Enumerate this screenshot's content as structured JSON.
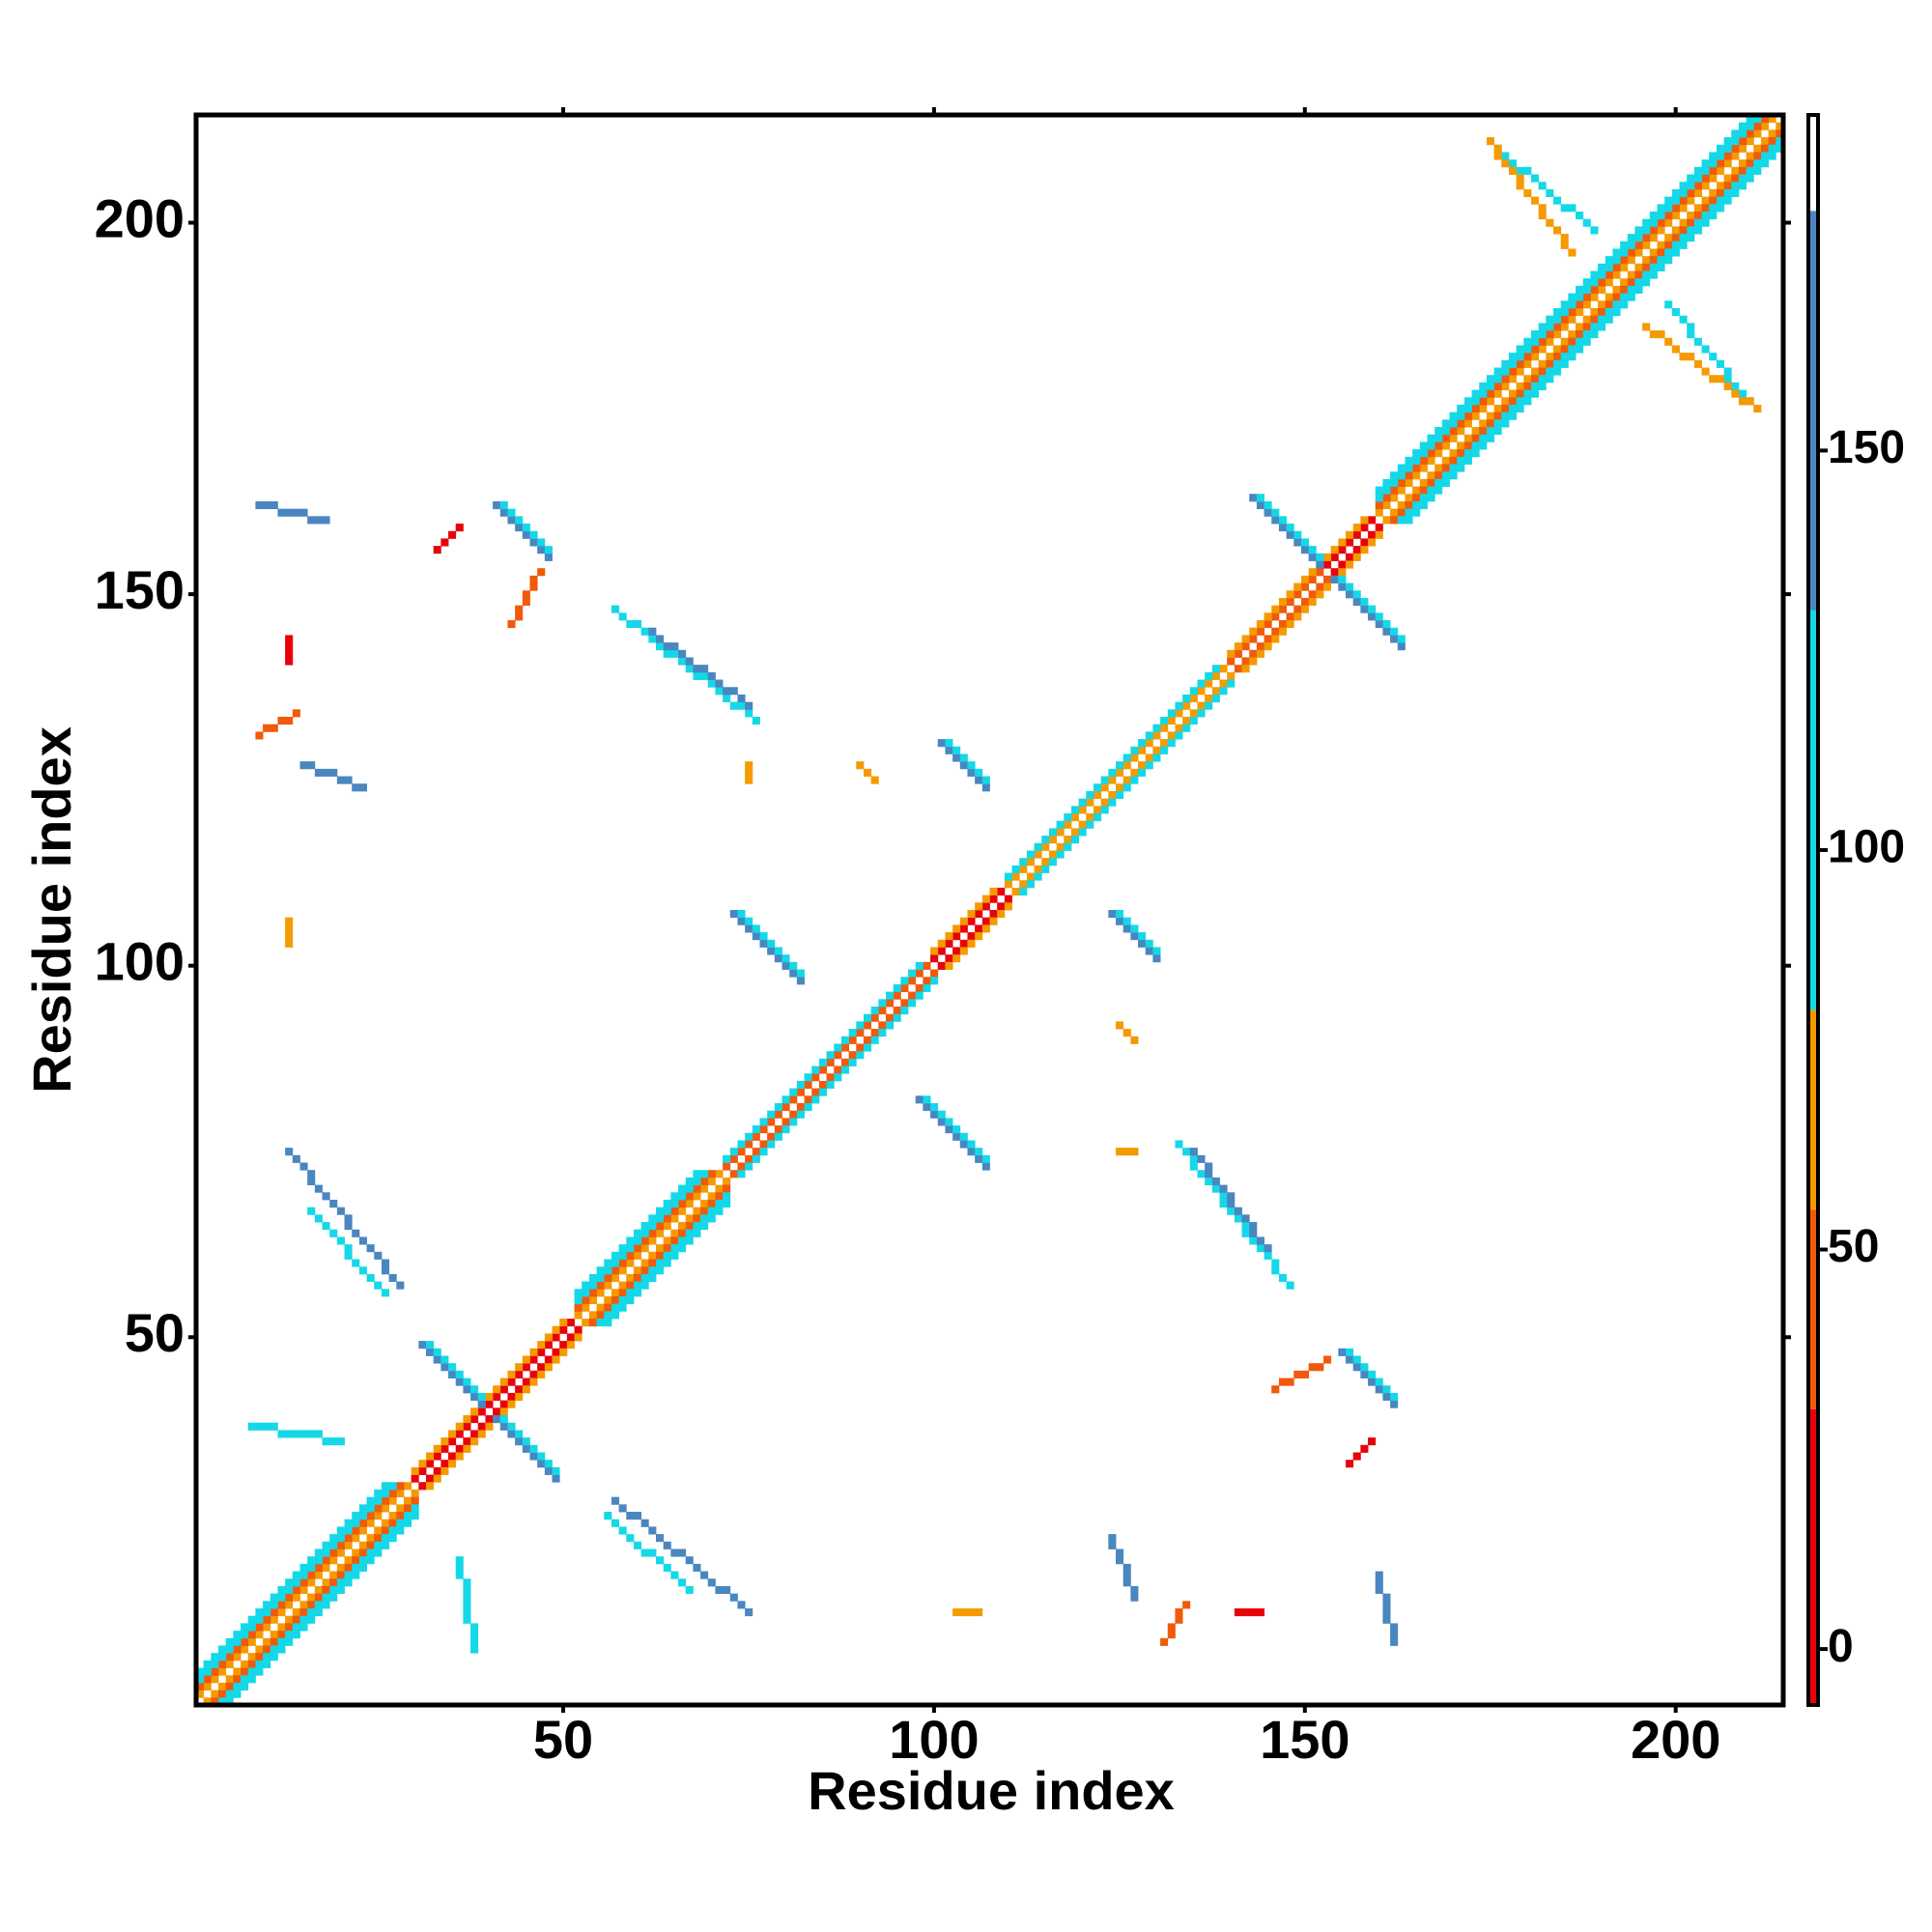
{
  "chart_data": {
    "type": "heatmap",
    "xlabel": "Residue index",
    "ylabel": "Residue index",
    "xlim": [
      0.5,
      214.5
    ],
    "ylim": [
      0.5,
      214.5
    ],
    "xticks": [
      50,
      100,
      150,
      200
    ],
    "yticks": [
      50,
      100,
      150,
      200
    ],
    "symmetric": true,
    "clim": [
      -7,
      192
    ],
    "cticks": [
      0,
      50,
      100,
      150
    ],
    "colorscale": {
      "bounds": [
        30,
        55,
        80,
        130,
        180
      ],
      "colors": [
        "#e8000b",
        "#f05a0a",
        "#f59a00",
        "#14d8e8",
        "#4a86c0",
        "#ffffff"
      ]
    },
    "contacts": [
      [
        1,
        1,
        214,
        214,
        185
      ],
      [
        1,
        2,
        29,
        30,
        62
      ],
      [
        1,
        3,
        28,
        30,
        45
      ],
      [
        1,
        4,
        27,
        30,
        100
      ],
      [
        1,
        5,
        26,
        30,
        112
      ],
      [
        30,
        31,
        51,
        52,
        12
      ],
      [
        30,
        32,
        50,
        52,
        62
      ],
      [
        52,
        53,
        71,
        72,
        62
      ],
      [
        52,
        54,
        70,
        72,
        45
      ],
      [
        52,
        55,
        69,
        72,
        100
      ],
      [
        52,
        56,
        68,
        72,
        112
      ],
      [
        72,
        73,
        99,
        100,
        40
      ],
      [
        72,
        74,
        98,
        100,
        95
      ],
      [
        100,
        101,
        109,
        110,
        12
      ],
      [
        100,
        102,
        108,
        110,
        62
      ],
      [
        110,
        111,
        139,
        140,
        62
      ],
      [
        110,
        112,
        138,
        140,
        100
      ],
      [
        140,
        141,
        152,
        153,
        35
      ],
      [
        153,
        154,
        159,
        160,
        10
      ],
      [
        140,
        142,
        158,
        160,
        62
      ],
      [
        160,
        161,
        213,
        214,
        62
      ],
      [
        160,
        162,
        212,
        214,
        45
      ],
      [
        160,
        163,
        211,
        214,
        100
      ],
      [
        160,
        164,
        210,
        214,
        112
      ],
      [
        41,
        39,
        49,
        31,
        150
      ],
      [
        42,
        39,
        49,
        32,
        120
      ],
      [
        154,
        152,
        163,
        143,
        150
      ],
      [
        155,
        152,
        163,
        144,
        120
      ],
      [
        155,
        48,
        162,
        41,
        150
      ],
      [
        156,
        48,
        162,
        42,
        120
      ],
      [
        98,
        82,
        107,
        73,
        150
      ],
      [
        99,
        82,
        107,
        74,
        120
      ],
      [
        124,
        107,
        130,
        101,
        150
      ],
      [
        125,
        107,
        130,
        102,
        120
      ],
      [
        133,
        76,
        148,
        57,
        120
      ],
      [
        135,
        75,
        145,
        62,
        150
      ],
      [
        56,
        26,
        67,
        16,
        110
      ],
      [
        57,
        28,
        75,
        13,
        140
      ],
      [
        36,
        20,
        38,
        8,
        120
      ],
      [
        125,
        92,
        127,
        90,
        60
      ],
      [
        125,
        75,
        127,
        75,
        55
      ],
      [
        141,
        13,
        144,
        13,
        12
      ],
      [
        103,
        13,
        106,
        13,
        55
      ],
      [
        160,
        18,
        162,
        9,
        140
      ],
      [
        124,
        23,
        127,
        15,
        135
      ],
      [
        146,
        43,
        153,
        47,
        50
      ],
      [
        156,
        33,
        159,
        36,
        20
      ],
      [
        131,
        9,
        134,
        14,
        50
      ],
      [
        176,
        210,
        189,
        199,
        90
      ],
      [
        196,
        186,
        211,
        175,
        60
      ]
    ]
  }
}
